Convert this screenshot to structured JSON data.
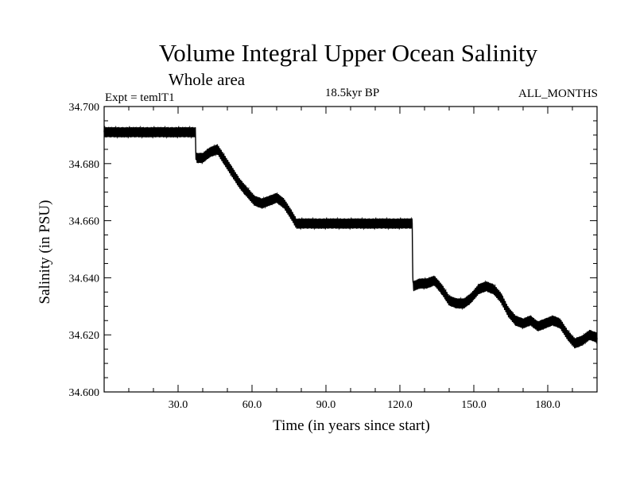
{
  "chart_data": {
    "type": "line",
    "title": "Volume Integral Upper Ocean Salinity",
    "subtitle": "Whole area",
    "expt_label": "Expt = temlT1",
    "period_label": "18.5kyr BP",
    "months_label": "ALL_MONTHS",
    "xlabel": "Time (in years since start)",
    "ylabel": "Salinity (in PSU)",
    "xlim": [
      0,
      200
    ],
    "ylim": [
      34.6,
      34.7
    ],
    "x_ticks": [
      30,
      60,
      90,
      120,
      150,
      180
    ],
    "x_tick_labels": [
      "30.0",
      "60.0",
      "90.0",
      "120.0",
      "150.0",
      "180.0"
    ],
    "y_ticks": [
      34.6,
      34.62,
      34.64,
      34.66,
      34.68,
      34.7
    ],
    "y_tick_labels": [
      "34.600",
      "34.620",
      "34.640",
      "34.660",
      "34.680",
      "34.700"
    ],
    "grid": false,
    "seasonal_amplitude": 0.0018,
    "series": [
      {
        "name": "salinity",
        "x": [
          0,
          37,
          37.3,
          40,
          43,
          46,
          49,
          52,
          55,
          58,
          61,
          64,
          67,
          70,
          73,
          76,
          78,
          80,
          90,
          100,
          110,
          120,
          125,
          125.3,
          128,
          131,
          134,
          137,
          140,
          143,
          146,
          149,
          152,
          155,
          158,
          161,
          164,
          167,
          170,
          173,
          176,
          179,
          182,
          185,
          188,
          191,
          194,
          197,
          200
        ],
        "values": [
          34.691,
          34.691,
          34.682,
          34.682,
          34.684,
          34.685,
          34.681,
          34.677,
          34.673,
          34.67,
          34.667,
          34.666,
          34.667,
          34.668,
          34.666,
          34.662,
          34.659,
          34.659,
          34.659,
          34.659,
          34.659,
          34.659,
          34.659,
          34.637,
          34.638,
          34.638,
          34.639,
          34.636,
          34.632,
          34.631,
          34.631,
          34.633,
          34.636,
          34.637,
          34.636,
          34.633,
          34.628,
          34.625,
          34.624,
          34.625,
          34.623,
          34.624,
          34.625,
          34.624,
          34.62,
          34.617,
          34.618,
          34.62,
          34.619
        ]
      }
    ]
  }
}
